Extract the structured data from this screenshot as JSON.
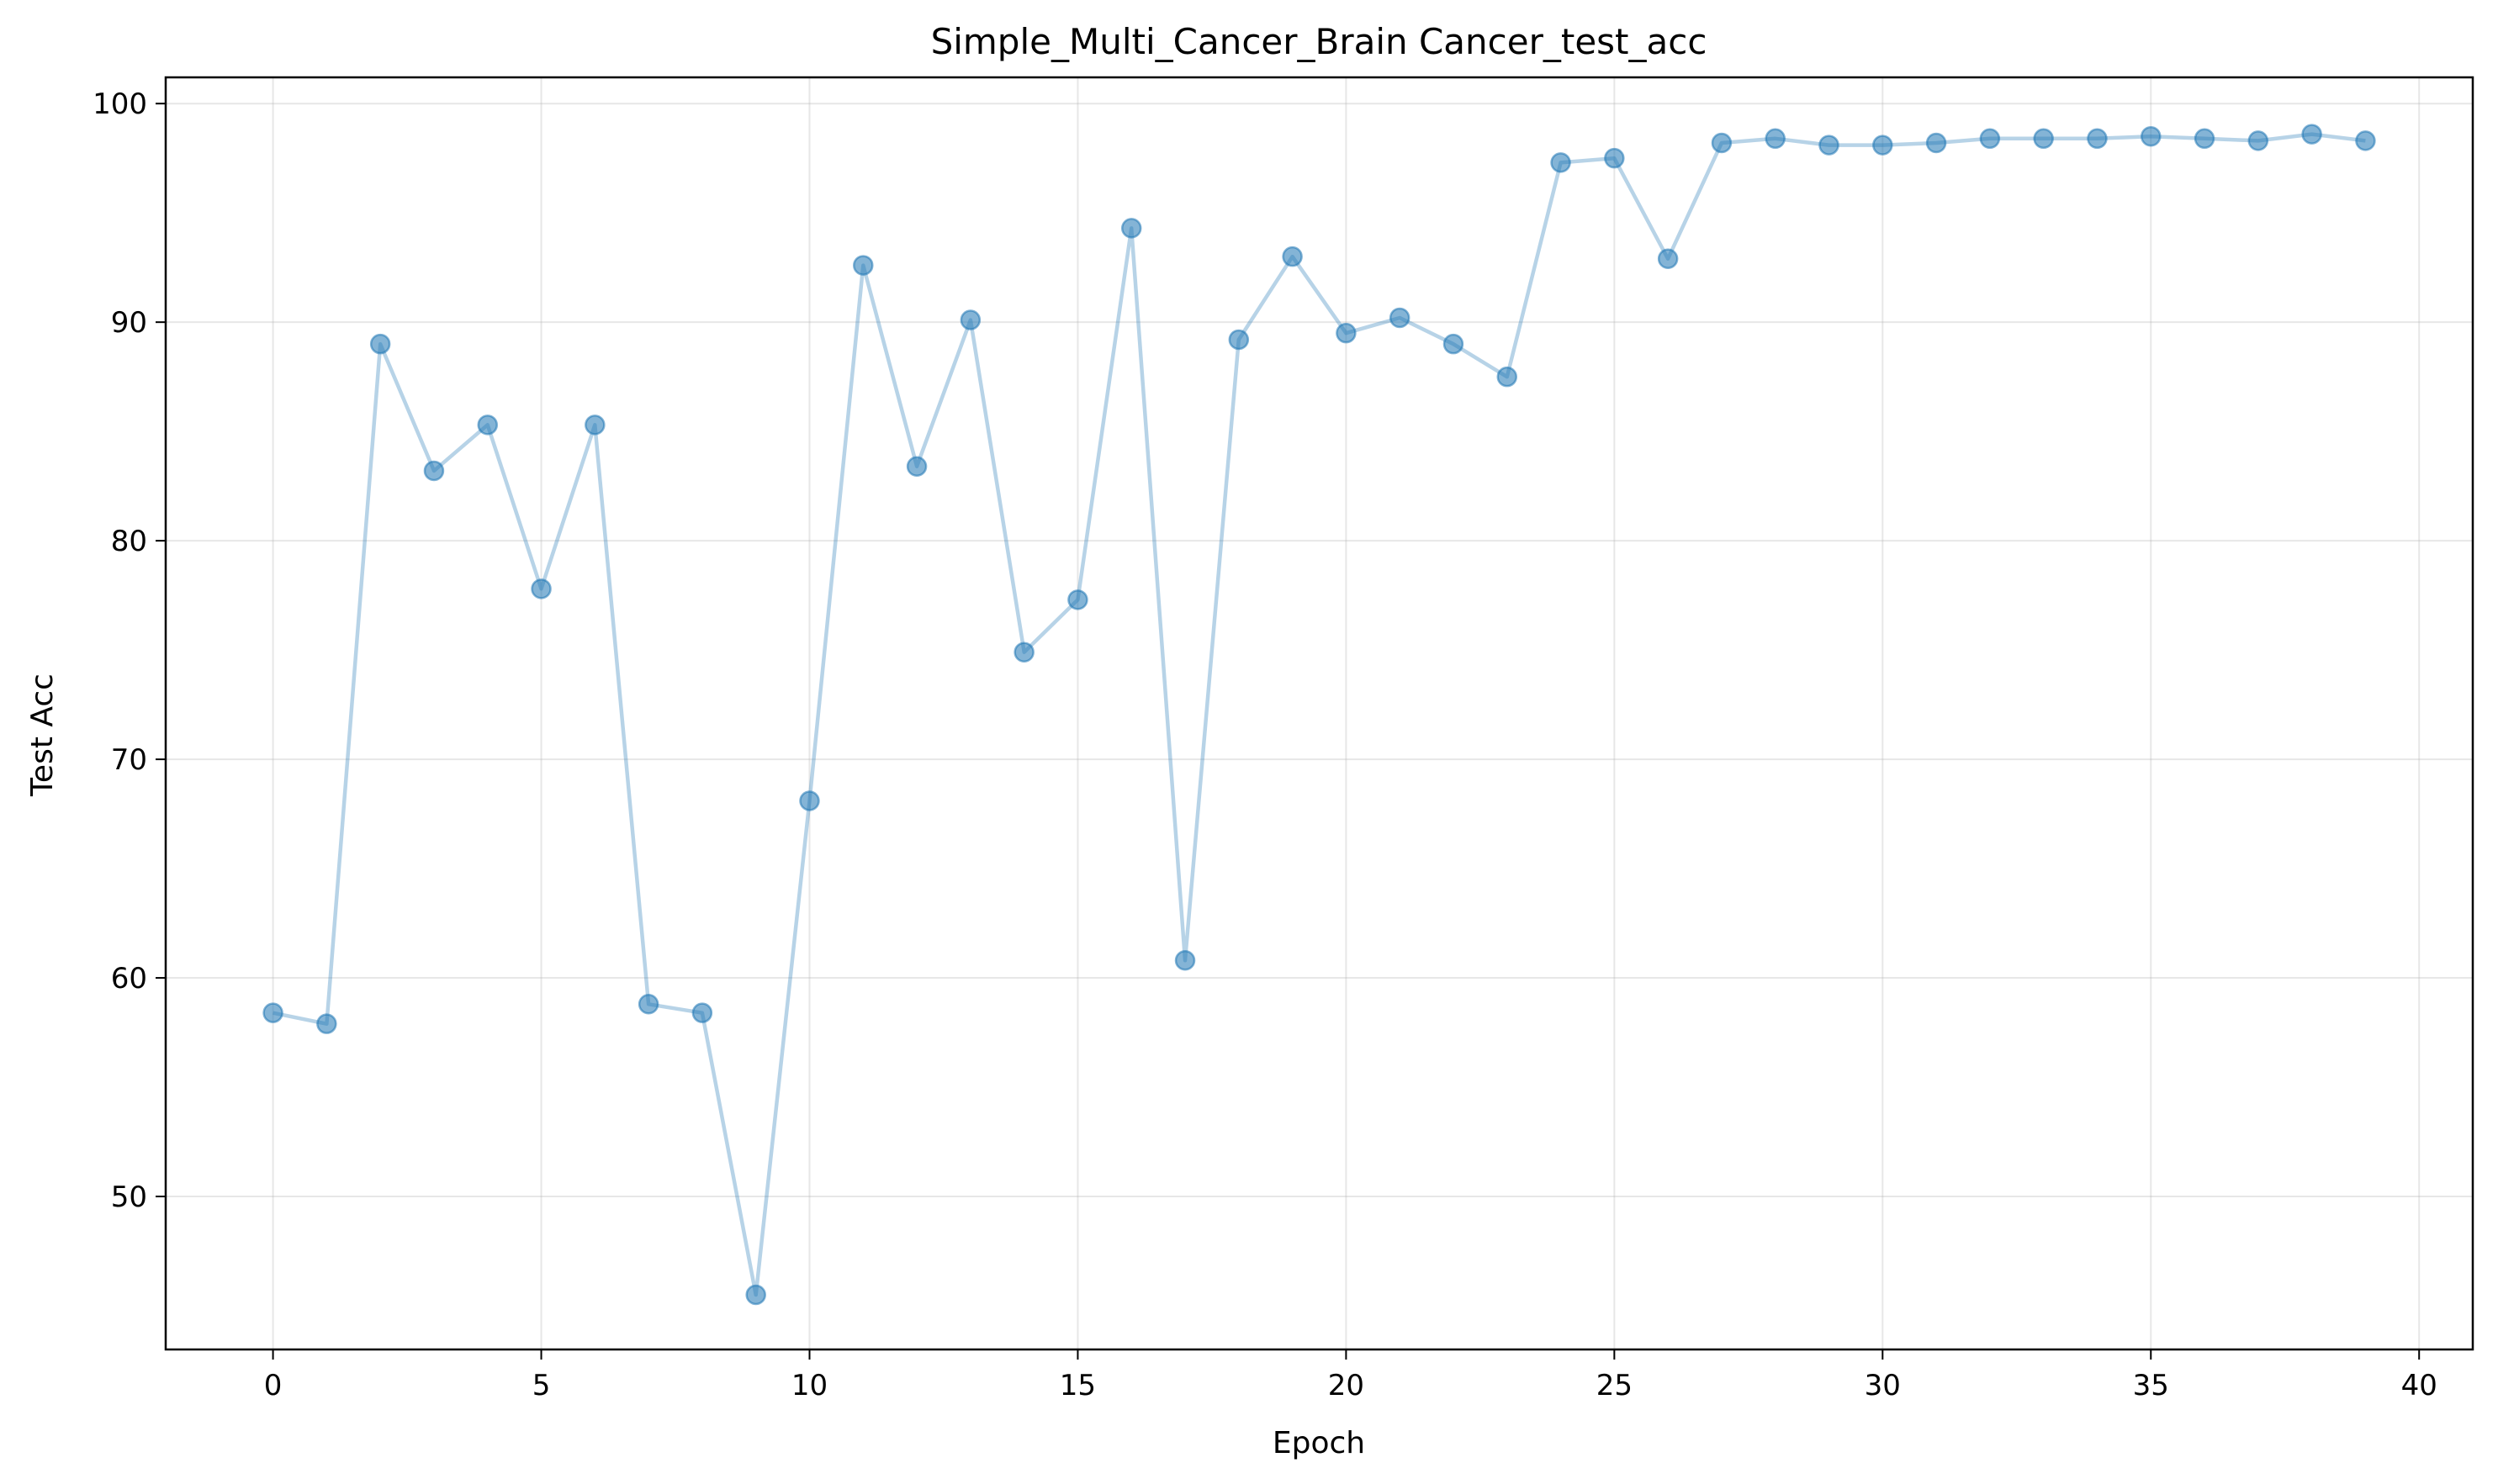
{
  "chart_data": {
    "type": "line",
    "title": "Simple_Multi_Cancer_Brain Cancer_test_acc",
    "xlabel": "Epoch",
    "ylabel": "Test Acc",
    "xlim": [
      -2,
      41
    ],
    "ylim": [
      43,
      101.2
    ],
    "xticks": [
      0,
      5,
      10,
      15,
      20,
      25,
      30,
      35,
      40
    ],
    "yticks": [
      50,
      60,
      70,
      80,
      90,
      100
    ],
    "grid": true,
    "legend": "none",
    "line_color": "#1f77b4",
    "series": [
      {
        "x": [
          0,
          1,
          2,
          3,
          4,
          5,
          6,
          7,
          8,
          9,
          10,
          11,
          12,
          13,
          14,
          15,
          16,
          17,
          18,
          19,
          20,
          21,
          22,
          23,
          24,
          25,
          26,
          27,
          28,
          29,
          30,
          31,
          32,
          33,
          34,
          35,
          36,
          37,
          38,
          39
        ],
        "y": [
          58.4,
          57.9,
          89.0,
          83.2,
          85.3,
          77.8,
          85.3,
          58.8,
          58.4,
          45.5,
          68.1,
          92.6,
          83.4,
          90.1,
          74.9,
          77.3,
          94.3,
          60.8,
          89.2,
          93.0,
          89.5,
          90.2,
          89.0,
          87.5,
          97.3,
          97.5,
          92.9,
          98.2,
          98.4,
          98.1,
          98.1,
          98.2,
          98.4,
          98.4,
          98.4,
          98.5,
          98.4,
          98.3,
          98.6,
          98.3
        ]
      }
    ]
  }
}
